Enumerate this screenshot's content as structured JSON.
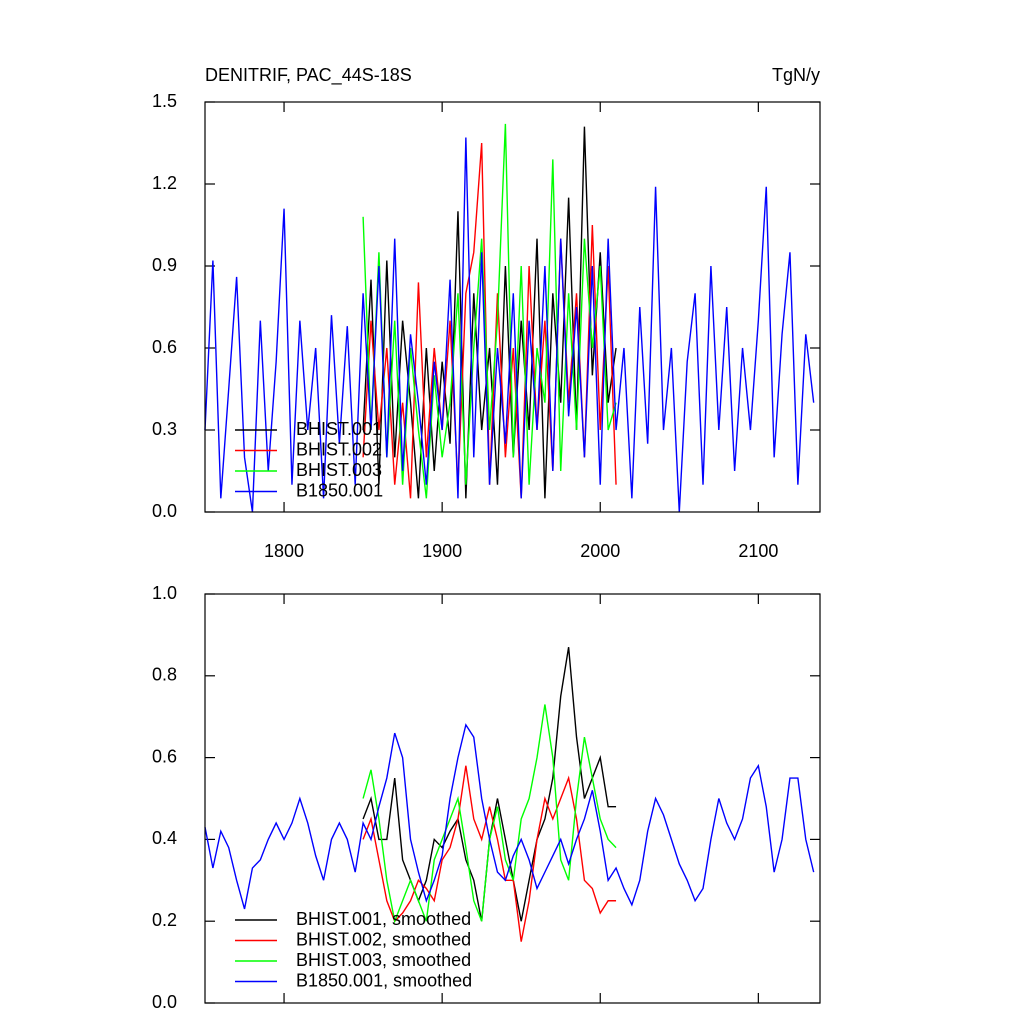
{
  "chart_data": [
    {
      "type": "line",
      "title": "DENITRIF, PAC_44S-18S",
      "y_units": "TgN/y",
      "xlim": [
        1750,
        2139
      ],
      "xticks": [
        1800,
        1900,
        2000,
        2100
      ],
      "xtick_labels": true,
      "ylim": [
        0,
        1.5
      ],
      "yticks": [
        {
          "value": 0,
          "label": "0.0"
        },
        0.3,
        0.6,
        0.9,
        1.2,
        1.5
      ],
      "legend": "lower left",
      "series": [
        {
          "name": "BHIST.001",
          "color": "#000000",
          "x": [
            1850,
            1855,
            1860,
            1865,
            1870,
            1875,
            1880,
            1885,
            1890,
            1895,
            1900,
            1905,
            1910,
            1915,
            1920,
            1925,
            1930,
            1935,
            1940,
            1945,
            1950,
            1955,
            1960,
            1965,
            1970,
            1975,
            1980,
            1985,
            1990,
            1995,
            2000,
            2005,
            2010
          ],
          "values": [
            0.3,
            0.85,
            0.1,
            0.92,
            0.2,
            0.7,
            0.4,
            0.05,
            0.6,
            0.15,
            0.55,
            0.25,
            1.1,
            0.05,
            0.8,
            0.3,
            0.6,
            0.1,
            0.9,
            0.2,
            0.7,
            0.3,
            1.0,
            0.05,
            0.8,
            0.4,
            1.15,
            0.3,
            1.41,
            0.5,
            0.95,
            0.4,
            0.6
          ]
        },
        {
          "name": "BHIST.002",
          "color": "#ff0000",
          "x": [
            1850,
            1855,
            1860,
            1865,
            1870,
            1875,
            1880,
            1885,
            1890,
            1895,
            1900,
            1905,
            1910,
            1915,
            1920,
            1925,
            1930,
            1935,
            1940,
            1945,
            1950,
            1955,
            1960,
            1965,
            1970,
            1975,
            1980,
            1985,
            1990,
            1995,
            2000,
            2005,
            2010
          ],
          "values": [
            0.2,
            0.7,
            0.3,
            0.6,
            0.1,
            0.4,
            0.05,
            0.84,
            0.2,
            0.6,
            0.3,
            0.7,
            0.1,
            0.8,
            0.95,
            1.35,
            0.1,
            0.8,
            0.2,
            0.6,
            0.05,
            0.9,
            0.3,
            0.7,
            0.15,
            1.0,
            0.4,
            0.8,
            0.2,
            1.05,
            0.3,
            0.9,
            0.1
          ]
        },
        {
          "name": "BHIST.003",
          "color": "#00ff00",
          "x": [
            1850,
            1855,
            1860,
            1865,
            1870,
            1875,
            1880,
            1885,
            1890,
            1895,
            1900,
            1905,
            1910,
            1915,
            1920,
            1925,
            1930,
            1935,
            1940,
            1945,
            1950,
            1955,
            1960,
            1965,
            1970,
            1975,
            1980,
            1985,
            1990,
            1995,
            2000,
            2005,
            2010
          ],
          "values": [
            1.08,
            0.3,
            0.95,
            0.2,
            0.7,
            0.1,
            0.6,
            0.3,
            0.05,
            0.5,
            0.2,
            0.4,
            0.8,
            0.1,
            0.6,
            1.0,
            0.3,
            0.7,
            1.42,
            0.2,
            0.9,
            0.1,
            0.6,
            0.4,
            1.29,
            0.15,
            0.8,
            0.3,
            1.0,
            0.6,
            0.9,
            0.3,
            0.4
          ]
        },
        {
          "name": "B1850.001",
          "color": "#0000ff",
          "x": [
            1750,
            1755,
            1760,
            1765,
            1770,
            1775,
            1780,
            1785,
            1790,
            1795,
            1800,
            1805,
            1810,
            1815,
            1820,
            1825,
            1830,
            1835,
            1840,
            1845,
            1850,
            1855,
            1860,
            1865,
            1870,
            1875,
            1880,
            1885,
            1890,
            1895,
            1900,
            1905,
            1910,
            1915,
            1920,
            1925,
            1930,
            1935,
            1940,
            1945,
            1950,
            1955,
            1960,
            1965,
            1970,
            1975,
            1980,
            1985,
            1990,
            1995,
            2000,
            2005,
            2010,
            2015,
            2020,
            2025,
            2030,
            2035,
            2040,
            2045,
            2050,
            2055,
            2060,
            2065,
            2070,
            2075,
            2080,
            2085,
            2090,
            2095,
            2100,
            2105,
            2110,
            2115,
            2120,
            2125,
            2130,
            2135
          ],
          "values": [
            0.3,
            0.92,
            0.05,
            0.45,
            0.86,
            0.2,
            0.0,
            0.7,
            0.15,
            0.55,
            1.11,
            0.1,
            0.7,
            0.3,
            0.6,
            0.05,
            0.72,
            0.25,
            0.68,
            0.1,
            0.8,
            0.3,
            0.9,
            0.2,
            1.0,
            0.15,
            0.65,
            0.4,
            0.1,
            0.55,
            0.3,
            0.85,
            0.05,
            1.37,
            0.2,
            0.95,
            0.1,
            0.6,
            0.25,
            0.8,
            0.05,
            0.7,
            0.3,
            0.9,
            0.15,
            1.0,
            0.35,
            0.75,
            0.2,
            0.9,
            0.1,
            1.0,
            0.3,
            0.6,
            0.05,
            0.75,
            0.25,
            1.19,
            0.3,
            0.6,
            0.0,
            0.55,
            0.8,
            0.1,
            0.9,
            0.3,
            0.75,
            0.15,
            0.6,
            0.3,
            0.7,
            1.19,
            0.2,
            0.65,
            0.95,
            0.1,
            0.65,
            0.4
          ]
        }
      ]
    },
    {
      "type": "line",
      "xlim": [
        1750,
        2139
      ],
      "xticks": [
        1800,
        1900,
        2000,
        2100
      ],
      "xtick_labels": false,
      "ylim": [
        0,
        1
      ],
      "yticks": [
        {
          "value": 0,
          "label": "0.0"
        },
        0.2,
        0.4,
        0.6,
        0.8,
        {
          "value": 1,
          "label": "1.0"
        }
      ],
      "legend": "lower left",
      "series": [
        {
          "name": "BHIST.001, smoothed",
          "color": "#000000",
          "x": [
            1850,
            1855,
            1860,
            1865,
            1870,
            1875,
            1880,
            1885,
            1890,
            1895,
            1900,
            1905,
            1910,
            1915,
            1920,
            1925,
            1930,
            1935,
            1940,
            1945,
            1950,
            1955,
            1960,
            1965,
            1970,
            1975,
            1980,
            1985,
            1990,
            1995,
            2000,
            2005,
            2010
          ],
          "values": [
            0.45,
            0.5,
            0.4,
            0.4,
            0.55,
            0.35,
            0.3,
            0.25,
            0.3,
            0.4,
            0.38,
            0.42,
            0.45,
            0.35,
            0.3,
            0.2,
            0.4,
            0.5,
            0.4,
            0.3,
            0.2,
            0.3,
            0.4,
            0.45,
            0.55,
            0.75,
            0.87,
            0.65,
            0.5,
            0.55,
            0.6,
            0.48,
            0.48
          ]
        },
        {
          "name": "BHIST.002, smoothed",
          "color": "#ff0000",
          "x": [
            1850,
            1855,
            1860,
            1865,
            1870,
            1875,
            1880,
            1885,
            1890,
            1895,
            1900,
            1905,
            1910,
            1915,
            1920,
            1925,
            1930,
            1935,
            1940,
            1945,
            1950,
            1955,
            1960,
            1965,
            1970,
            1975,
            1980,
            1985,
            1990,
            1995,
            2000,
            2005,
            2010
          ],
          "values": [
            0.4,
            0.45,
            0.35,
            0.25,
            0.2,
            0.22,
            0.25,
            0.3,
            0.28,
            0.25,
            0.35,
            0.38,
            0.45,
            0.58,
            0.45,
            0.4,
            0.48,
            0.4,
            0.3,
            0.3,
            0.15,
            0.25,
            0.4,
            0.5,
            0.45,
            0.5,
            0.55,
            0.45,
            0.3,
            0.28,
            0.22,
            0.25,
            0.25
          ]
        },
        {
          "name": "BHIST.003, smoothed",
          "color": "#00ff00",
          "x": [
            1850,
            1855,
            1860,
            1865,
            1870,
            1875,
            1880,
            1885,
            1890,
            1895,
            1900,
            1905,
            1910,
            1915,
            1920,
            1925,
            1930,
            1935,
            1940,
            1945,
            1950,
            1955,
            1960,
            1965,
            1970,
            1975,
            1980,
            1985,
            1990,
            1995,
            2000,
            2005,
            2010
          ],
          "values": [
            0.5,
            0.57,
            0.45,
            0.3,
            0.2,
            0.25,
            0.3,
            0.25,
            0.2,
            0.35,
            0.4,
            0.45,
            0.5,
            0.38,
            0.25,
            0.2,
            0.4,
            0.48,
            0.35,
            0.3,
            0.45,
            0.5,
            0.6,
            0.73,
            0.6,
            0.35,
            0.3,
            0.5,
            0.65,
            0.55,
            0.45,
            0.4,
            0.38
          ]
        },
        {
          "name": "B1850.001, smoothed",
          "color": "#0000ff",
          "x": [
            1750,
            1755,
            1760,
            1765,
            1770,
            1775,
            1780,
            1785,
            1790,
            1795,
            1800,
            1805,
            1810,
            1815,
            1820,
            1825,
            1830,
            1835,
            1840,
            1845,
            1850,
            1855,
            1860,
            1865,
            1870,
            1875,
            1880,
            1885,
            1890,
            1895,
            1900,
            1905,
            1910,
            1915,
            1920,
            1925,
            1930,
            1935,
            1940,
            1945,
            1950,
            1955,
            1960,
            1965,
            1970,
            1975,
            1980,
            1985,
            1990,
            1995,
            2000,
            2005,
            2010,
            2015,
            2020,
            2025,
            2030,
            2035,
            2040,
            2045,
            2050,
            2055,
            2060,
            2065,
            2070,
            2075,
            2080,
            2085,
            2090,
            2095,
            2100,
            2105,
            2110,
            2115,
            2120,
            2125,
            2130,
            2135
          ],
          "values": [
            0.43,
            0.33,
            0.42,
            0.38,
            0.3,
            0.23,
            0.33,
            0.35,
            0.4,
            0.44,
            0.4,
            0.44,
            0.5,
            0.44,
            0.36,
            0.3,
            0.4,
            0.44,
            0.4,
            0.32,
            0.44,
            0.4,
            0.48,
            0.55,
            0.66,
            0.6,
            0.4,
            0.32,
            0.25,
            0.3,
            0.36,
            0.5,
            0.6,
            0.68,
            0.65,
            0.5,
            0.4,
            0.32,
            0.3,
            0.36,
            0.4,
            0.35,
            0.28,
            0.32,
            0.36,
            0.4,
            0.34,
            0.4,
            0.45,
            0.52,
            0.42,
            0.3,
            0.33,
            0.28,
            0.24,
            0.3,
            0.42,
            0.5,
            0.46,
            0.4,
            0.34,
            0.3,
            0.25,
            0.28,
            0.4,
            0.5,
            0.44,
            0.4,
            0.45,
            0.55,
            0.58,
            0.48,
            0.32,
            0.4,
            0.55,
            0.55,
            0.4,
            0.32
          ]
        }
      ]
    }
  ]
}
